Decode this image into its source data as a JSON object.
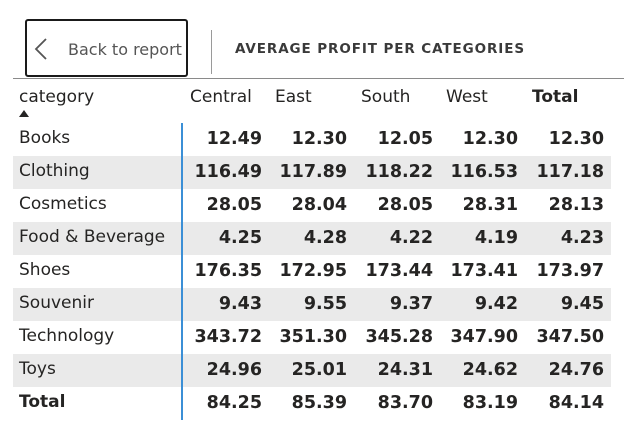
{
  "header": {
    "back_label": "Back to report",
    "title": "AVERAGE PROFIT PER CATEGORIES"
  },
  "matrix": {
    "row_header": "category",
    "sort": "ascending",
    "columns": [
      "Central",
      "East",
      "South",
      "West",
      "Total"
    ],
    "rows": [
      {
        "label": "Books",
        "values": [
          "12.49",
          "12.30",
          "12.05",
          "12.30",
          "12.30"
        ]
      },
      {
        "label": "Clothing",
        "values": [
          "116.49",
          "117.89",
          "118.22",
          "116.53",
          "117.18"
        ]
      },
      {
        "label": "Cosmetics",
        "values": [
          "28.05",
          "28.04",
          "28.05",
          "28.31",
          "28.13"
        ]
      },
      {
        "label": "Food & Beverage",
        "values": [
          "4.25",
          "4.28",
          "4.22",
          "4.19",
          "4.23"
        ]
      },
      {
        "label": "Shoes",
        "values": [
          "176.35",
          "172.95",
          "173.44",
          "173.41",
          "173.97"
        ]
      },
      {
        "label": "Souvenir",
        "values": [
          "9.43",
          "9.55",
          "9.37",
          "9.42",
          "9.45"
        ]
      },
      {
        "label": "Technology",
        "values": [
          "343.72",
          "351.30",
          "345.28",
          "347.90",
          "347.50"
        ]
      },
      {
        "label": "Toys",
        "values": [
          "24.96",
          "25.01",
          "24.31",
          "24.62",
          "24.76"
        ]
      }
    ],
    "total_row": {
      "label": "Total",
      "values": [
        "84.25",
        "85.39",
        "83.70",
        "83.19",
        "84.14"
      ]
    }
  },
  "colors": {
    "accent": "#3b8fd6",
    "band": "#eaeaea",
    "text": "#252423"
  }
}
